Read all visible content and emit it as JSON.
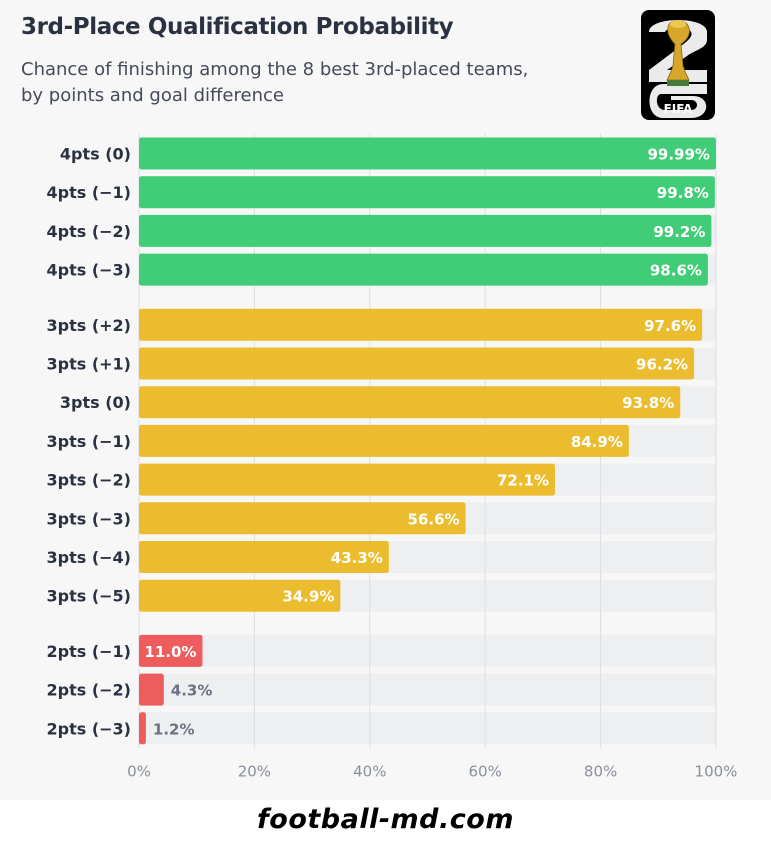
{
  "title": "3rd-Place Qualification Probability",
  "subtitle_line1": "Chance of finishing among the 8 best 3rd-placed teams,",
  "subtitle_line2": "by points and goal difference",
  "logo": {
    "icon": "world-cup-trophy-26-logo",
    "text": "FIFA"
  },
  "footer": "football-md.com",
  "colors": {
    "green": "#41cc78",
    "yellow": "#ebbd2e",
    "red": "#ee5d5d",
    "track": "#eeeff1",
    "grid": "#dcdee2"
  },
  "chart_data": {
    "type": "bar",
    "orientation": "horizontal",
    "xlim": [
      0,
      100
    ],
    "xticks": [
      "0%",
      "20%",
      "40%",
      "60%",
      "80%",
      "100%"
    ],
    "grid": true,
    "groups": [
      {
        "color_key": "green",
        "bars": [
          {
            "label": "4pts (0)",
            "value": 99.99,
            "value_label": "99.99%"
          },
          {
            "label": "4pts (−1)",
            "value": 99.8,
            "value_label": "99.8%"
          },
          {
            "label": "4pts (−2)",
            "value": 99.2,
            "value_label": "99.2%"
          },
          {
            "label": "4pts (−3)",
            "value": 98.6,
            "value_label": "98.6%"
          }
        ]
      },
      {
        "color_key": "yellow",
        "bars": [
          {
            "label": "3pts (+2)",
            "value": 97.6,
            "value_label": "97.6%"
          },
          {
            "label": "3pts (+1)",
            "value": 96.2,
            "value_label": "96.2%"
          },
          {
            "label": "3pts (0)",
            "value": 93.8,
            "value_label": "93.8%"
          },
          {
            "label": "3pts (−1)",
            "value": 84.9,
            "value_label": "84.9%"
          },
          {
            "label": "3pts (−2)",
            "value": 72.1,
            "value_label": "72.1%"
          },
          {
            "label": "3pts (−3)",
            "value": 56.6,
            "value_label": "56.6%"
          },
          {
            "label": "3pts (−4)",
            "value": 43.3,
            "value_label": "43.3%"
          },
          {
            "label": "3pts (−5)",
            "value": 34.9,
            "value_label": "34.9%"
          }
        ]
      },
      {
        "color_key": "red",
        "bars": [
          {
            "label": "2pts (−1)",
            "value": 11.0,
            "value_label": "11.0%"
          },
          {
            "label": "2pts (−2)",
            "value": 4.3,
            "value_label": "4.3%"
          },
          {
            "label": "2pts (−3)",
            "value": 1.2,
            "value_label": "1.2%"
          }
        ]
      }
    ]
  }
}
